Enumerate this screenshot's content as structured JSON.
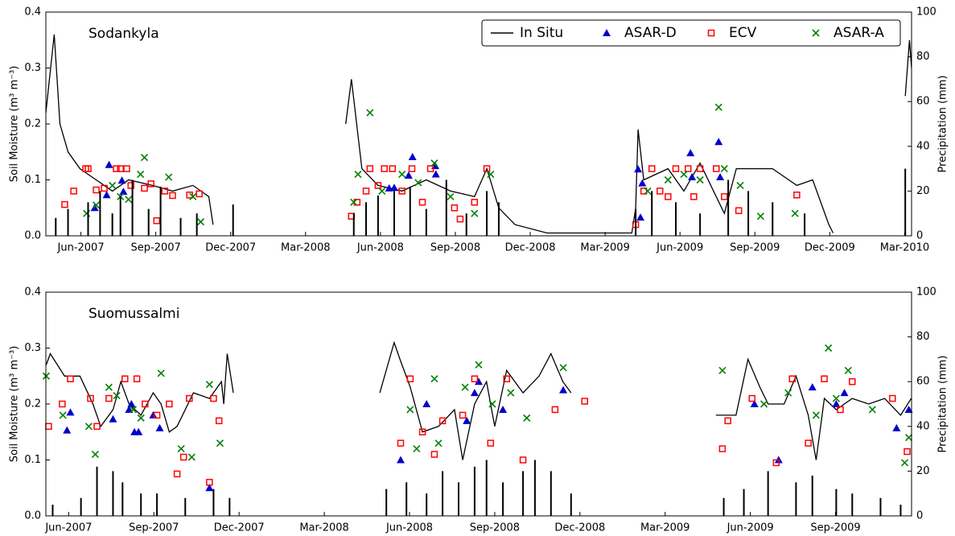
{
  "chart_data": [
    {
      "type": "line",
      "title": "Sodankyla",
      "y_label": "Soil Moisture (m³ m⁻³)",
      "y2_label": "Precipitation (mm)",
      "legend": "upper right",
      "xlim": [
        2007.3,
        2010.19
      ],
      "xticks": [
        {
          "value": 2007.417,
          "label": "Jun-2007"
        },
        {
          "value": 2007.667,
          "label": "Sep-2007"
        },
        {
          "value": 2007.917,
          "label": "Dec-2007"
        },
        {
          "value": 2008.167,
          "label": "Mar-2008"
        },
        {
          "value": 2008.417,
          "label": "Jun-2008"
        },
        {
          "value": 2008.667,
          "label": "Sep-2008"
        },
        {
          "value": 2008.917,
          "label": "Dec-2008"
        },
        {
          "value": 2009.167,
          "label": "Mar-2009"
        },
        {
          "value": 2009.417,
          "label": "Jun-2009"
        },
        {
          "value": 2009.667,
          "label": "Sep-2009"
        },
        {
          "value": 2009.917,
          "label": "Dec-2009"
        },
        {
          "value": 2010.167,
          "label": "Mar-2010"
        }
      ],
      "ylim": [
        0,
        0.4
      ],
      "yticks": [
        {
          "value": 0,
          "label": "0.0"
        },
        0.1,
        0.2,
        0.3,
        0.4
      ],
      "y2lim": [
        0,
        100
      ],
      "y2ticks": [
        0,
        20,
        40,
        60,
        80,
        100
      ],
      "series": [
        {
          "name": "In Situ",
          "color": "#000000",
          "marker": "line",
          "x": [
            2007.3,
            2007.328,
            2007.347,
            2007.374,
            2007.414,
            2007.468,
            2007.522,
            2007.576,
            2007.656,
            2007.723,
            2007.791,
            2007.844,
            2007.858,
            2008.1,
            2008.301,
            2008.32,
            2008.355,
            2008.409,
            2008.489,
            2008.57,
            2008.651,
            2008.731,
            2008.772,
            2008.812,
            2008.866,
            2008.973,
            2009.256,
            2009.269,
            2009.277,
            2009.296,
            2009.377,
            2009.43,
            2009.484,
            2009.538,
            2009.565,
            2009.605,
            2009.726,
            2009.807,
            2009.86,
            2009.914,
            2009.928,
            2010.0,
            2010.169,
            2010.183,
            2010.19
          ],
          "values": [
            0.22,
            0.36,
            0.2,
            0.15,
            0.12,
            0.1,
            0.08,
            0.1,
            0.09,
            0.08,
            0.09,
            0.07,
            0.02,
            null,
            0.2,
            0.28,
            0.12,
            0.09,
            0.08,
            0.1,
            0.08,
            0.07,
            0.12,
            0.05,
            0.02,
            0.005,
            0.005,
            0.05,
            0.19,
            0.1,
            0.12,
            0.08,
            0.13,
            0.07,
            0.04,
            0.12,
            0.12,
            0.09,
            0.1,
            0.02,
            0.005,
            null,
            0.25,
            0.35,
            0.3
          ]
        },
        {
          "name": "ASAR-D",
          "color": "#0000cc",
          "marker": "triangle",
          "x": [
            2007.463,
            2007.503,
            2007.511,
            2007.554,
            2007.559,
            2008.446,
            2008.463,
            2008.524,
            2008.511,
            2008.6,
            2008.602,
            2009.285,
            2009.277,
            2009.291,
            2009.452,
            2009.546,
            2009.551,
            2009.457
          ],
          "values": [
            0.05,
            0.073,
            0.127,
            0.099,
            0.079,
            0.085,
            0.086,
            0.141,
            0.108,
            0.125,
            0.11,
            0.033,
            0.119,
            0.094,
            0.148,
            0.168,
            0.105,
            0.105
          ]
        },
        {
          "name": "ECV",
          "color": "#ff0000",
          "marker": "square",
          "x": [
            2007.363,
            2007.393,
            2007.433,
            2007.441,
            2007.468,
            2007.495,
            2007.535,
            2007.549,
            2007.57,
            2007.584,
            2007.629,
            2007.651,
            2007.67,
            2007.697,
            2007.723,
            2007.78,
            2007.812,
            2008.32,
            2008.339,
            2008.369,
            2008.382,
            2008.409,
            2008.43,
            2008.457,
            2008.489,
            2008.522,
            2008.557,
            2008.584,
            2008.664,
            2008.683,
            2008.731,
            2008.772,
            2009.269,
            2009.296,
            2009.323,
            2009.35,
            2009.377,
            2009.403,
            2009.444,
            2009.463,
            2009.484,
            2009.538,
            2009.565,
            2009.613,
            2009.807
          ],
          "values": [
            0.056,
            0.08,
            0.12,
            0.12,
            0.082,
            0.085,
            0.12,
            0.12,
            0.12,
            0.09,
            0.085,
            0.093,
            0.027,
            0.08,
            0.072,
            0.073,
            0.075,
            0.035,
            0.06,
            0.08,
            0.12,
            0.09,
            0.12,
            0.12,
            0.08,
            0.12,
            0.06,
            0.12,
            0.05,
            0.03,
            0.06,
            0.12,
            0.02,
            0.08,
            0.12,
            0.08,
            0.07,
            0.12,
            0.12,
            0.07,
            0.12,
            0.12,
            0.07,
            0.045,
            0.073
          ]
        },
        {
          "name": "ASAR-A",
          "color": "#008000",
          "marker": "x",
          "x": [
            2007.436,
            2007.468,
            2007.522,
            2007.549,
            2007.576,
            2007.616,
            2007.629,
            2007.71,
            2007.791,
            2007.817,
            2008.328,
            2008.342,
            2008.382,
            2008.422,
            2008.489,
            2008.543,
            2008.597,
            2008.651,
            2008.731,
            2008.785,
            2009.309,
            2009.377,
            2009.43,
            2009.484,
            2009.546,
            2009.565,
            2009.618,
            2009.686,
            2009.801
          ],
          "values": [
            0.04,
            0.055,
            0.09,
            0.07,
            0.065,
            0.11,
            0.14,
            0.105,
            0.07,
            0.025,
            0.06,
            0.11,
            0.22,
            0.08,
            0.11,
            0.095,
            0.13,
            0.07,
            0.04,
            0.11,
            0.08,
            0.1,
            0.11,
            0.1,
            0.23,
            0.12,
            0.09,
            0.035,
            0.04
          ]
        },
        {
          "color": "#000000",
          "marker": "bar",
          "axis": "y2",
          "x": [
            2007.333,
            2007.374,
            2007.441,
            2007.481,
            2007.522,
            2007.549,
            2007.589,
            2007.643,
            2007.683,
            2007.75,
            2007.804,
            2007.925,
            2008.328,
            2008.369,
            2008.409,
            2008.463,
            2008.516,
            2008.57,
            2008.637,
            2008.704,
            2008.772,
            2008.812,
            2009.269,
            2009.323,
            2009.403,
            2009.484,
            2009.578,
            2009.645,
            2009.726,
            2009.833,
            2010.169
          ],
          "values": [
            8,
            12,
            15,
            20,
            10,
            18,
            25,
            12,
            22,
            8,
            10,
            14,
            10,
            15,
            18,
            20,
            22,
            12,
            25,
            10,
            20,
            15,
            12,
            20,
            15,
            10,
            25,
            20,
            15,
            10,
            30
          ]
        }
      ]
    },
    {
      "type": "line",
      "title": "Suomussalmi",
      "y_label": "Soil Moisture (m³ m⁻³)",
      "y2_label": "Precipitation (mm)",
      "xlim": [
        2007.35,
        2009.89
      ],
      "xticks": [
        {
          "value": 2007.417,
          "label": "Jun-2007"
        },
        {
          "value": 2007.667,
          "label": "Sep-2007"
        },
        {
          "value": 2007.917,
          "label": "Dec-2007"
        },
        {
          "value": 2008.167,
          "label": "Mar-2008"
        },
        {
          "value": 2008.417,
          "label": "Jun-2008"
        },
        {
          "value": 2008.667,
          "label": "Sep-2008"
        },
        {
          "value": 2008.917,
          "label": "Dec-2008"
        },
        {
          "value": 2009.167,
          "label": "Mar-2009"
        },
        {
          "value": 2009.417,
          "label": "Jun-2009"
        },
        {
          "value": 2009.667,
          "label": "Sep-2009"
        }
      ],
      "ylim": [
        0,
        0.4
      ],
      "yticks": [
        {
          "value": 0,
          "label": "0.0"
        },
        0.1,
        0.2,
        0.3,
        0.4
      ],
      "y2lim": [
        0,
        100
      ],
      "y2ticks": [
        0,
        20,
        40,
        60,
        80,
        100
      ],
      "series": [
        {
          "color": "#000000",
          "marker": "line",
          "x": [
            2007.351,
            2007.363,
            2007.405,
            2007.45,
            2007.488,
            2007.511,
            2007.547,
            2007.57,
            2007.594,
            2007.629,
            2007.665,
            2007.688,
            2007.712,
            2007.735,
            2007.783,
            2007.83,
            2007.865,
            2007.872,
            2007.882,
            2007.9,
            2008.1,
            2008.33,
            2008.372,
            2008.389,
            2008.419,
            2008.455,
            2008.502,
            2008.549,
            2008.573,
            2008.608,
            2008.643,
            2008.667,
            2008.702,
            2008.75,
            2008.797,
            2008.832,
            2008.867,
            2008.891,
            2009.1,
            2009.316,
            2009.375,
            2009.41,
            2009.445,
            2009.469,
            2009.516,
            2009.551,
            2009.587,
            2009.61,
            2009.634,
            2009.669,
            2009.716,
            2009.764,
            2009.811,
            2009.858,
            2009.889
          ],
          "values": [
            0.27,
            0.29,
            0.25,
            0.25,
            0.2,
            0.16,
            0.19,
            0.24,
            0.2,
            0.18,
            0.22,
            0.2,
            0.15,
            0.16,
            0.22,
            0.21,
            0.24,
            0.2,
            0.29,
            0.22,
            null,
            0.22,
            0.31,
            0.28,
            0.23,
            0.15,
            0.16,
            0.19,
            0.1,
            0.2,
            0.24,
            0.16,
            0.26,
            0.22,
            0.25,
            0.29,
            0.24,
            0.22,
            null,
            0.18,
            0.18,
            0.28,
            0.23,
            0.2,
            0.2,
            0.25,
            0.18,
            0.1,
            0.21,
            0.19,
            0.21,
            0.2,
            0.21,
            0.18,
            0.21
          ]
        },
        {
          "color": "#0000cc",
          "marker": "triangle",
          "x": [
            2007.422,
            2007.412,
            2007.547,
            2007.594,
            2007.601,
            2007.61,
            2007.622,
            2007.665,
            2007.684,
            2007.83,
            2008.391,
            2008.467,
            2008.585,
            2008.608,
            2008.62,
            2008.691,
            2008.868,
            2009.429,
            2009.5,
            2009.599,
            2009.669,
            2009.693,
            2009.846,
            2009.882
          ],
          "values": [
            0.185,
            0.153,
            0.173,
            0.19,
            0.2,
            0.15,
            0.15,
            0.18,
            0.157,
            0.05,
            0.1,
            0.2,
            0.17,
            0.22,
            0.24,
            0.19,
            0.225,
            0.2,
            0.1,
            0.23,
            0.2,
            0.22,
            0.157,
            0.19
          ]
        },
        {
          "color": "#ff0000",
          "marker": "square",
          "x": [
            2007.358,
            2007.398,
            2007.422,
            2007.481,
            2007.5,
            2007.535,
            2007.582,
            2007.617,
            2007.641,
            2007.676,
            2007.712,
            2007.735,
            2007.754,
            2007.771,
            2007.83,
            2007.842,
            2007.858,
            2008.391,
            2008.419,
            2008.455,
            2008.49,
            2008.514,
            2008.573,
            2008.608,
            2008.655,
            2008.702,
            2008.75,
            2008.844,
            2008.931,
            2009.335,
            2009.351,
            2009.422,
            2009.493,
            2009.54,
            2009.587,
            2009.634,
            2009.681,
            2009.716,
            2009.834,
            2009.877
          ],
          "values": [
            0.16,
            0.2,
            0.245,
            0.21,
            0.16,
            0.21,
            0.245,
            0.245,
            0.2,
            0.18,
            0.2,
            0.075,
            0.105,
            0.21,
            0.06,
            0.21,
            0.17,
            0.13,
            0.245,
            0.15,
            0.11,
            0.17,
            0.18,
            0.245,
            0.13,
            0.245,
            0.1,
            0.19,
            0.205,
            0.12,
            0.17,
            0.21,
            0.095,
            0.245,
            0.13,
            0.245,
            0.19,
            0.24,
            0.21,
            0.115
          ]
        },
        {
          "color": "#008000",
          "marker": "x",
          "x": [
            2007.351,
            2007.4,
            2007.476,
            2007.495,
            2007.535,
            2007.558,
            2007.606,
            2007.629,
            2007.688,
            2007.747,
            2007.778,
            2007.83,
            2007.861,
            2008.419,
            2008.438,
            2008.49,
            2008.502,
            2008.58,
            2008.62,
            2008.66,
            2008.714,
            2008.761,
            2008.868,
            2009.335,
            2009.457,
            2009.528,
            2009.61,
            2009.646,
            2009.669,
            2009.704,
            2009.775,
            2009.87,
            2009.882
          ],
          "values": [
            0.25,
            0.18,
            0.16,
            0.11,
            0.23,
            0.215,
            0.19,
            0.175,
            0.255,
            0.12,
            0.105,
            0.235,
            0.13,
            0.19,
            0.12,
            0.245,
            0.13,
            0.23,
            0.27,
            0.2,
            0.22,
            0.175,
            0.265,
            0.26,
            0.2,
            0.22,
            0.18,
            0.3,
            0.21,
            0.26,
            0.19,
            0.095,
            0.14
          ]
        },
        {
          "color": "#000000",
          "marker": "bar",
          "axis": "y2",
          "x": [
            2007.37,
            2007.453,
            2007.5,
            2007.547,
            2007.575,
            2007.629,
            2007.676,
            2007.759,
            2007.842,
            2007.889,
            2008.349,
            2008.408,
            2008.467,
            2008.514,
            2008.561,
            2008.608,
            2008.643,
            2008.691,
            2008.75,
            2008.785,
            2008.832,
            2008.891,
            2009.339,
            2009.398,
            2009.469,
            2009.551,
            2009.599,
            2009.669,
            2009.716,
            2009.799,
            2009.858
          ],
          "values": [
            5,
            8,
            22,
            20,
            15,
            10,
            10,
            8,
            12,
            8,
            12,
            15,
            10,
            20,
            15,
            22,
            25,
            15,
            20,
            25,
            20,
            10,
            8,
            12,
            20,
            15,
            18,
            12,
            10,
            8,
            5
          ]
        }
      ]
    }
  ]
}
